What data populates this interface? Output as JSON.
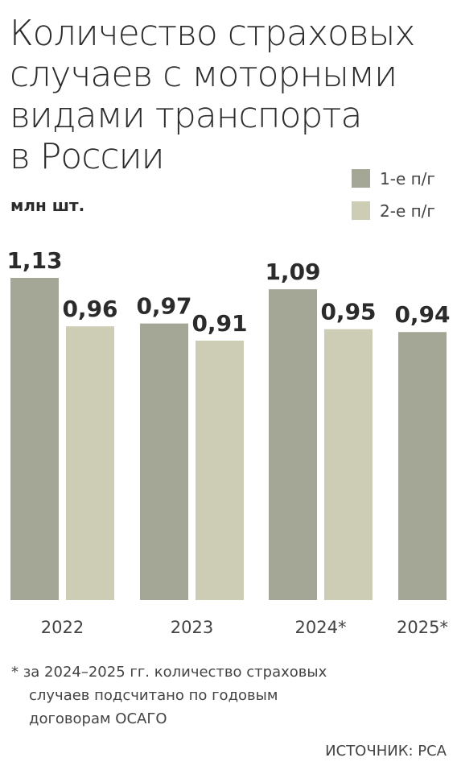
{
  "chart_data": {
    "type": "bar",
    "title": [
      "Количество страховых",
      "случаев с моторными",
      "видами транспорта",
      "в России"
    ],
    "unit": "млн шт.",
    "categories": [
      "2022",
      "2023",
      "2024*",
      "2025*"
    ],
    "series": [
      {
        "name": "1-е п/г",
        "color": "#a4a696",
        "values": [
          1.13,
          0.97,
          1.09,
          0.94
        ],
        "value_labels": [
          "1,13",
          "0,97",
          "1,09",
          "0,94"
        ]
      },
      {
        "name": "2-е п/г",
        "color": "#cdcdb6",
        "values": [
          0.96,
          0.91,
          0.95,
          null
        ],
        "value_labels": [
          "0,96",
          "0,91",
          "0,95",
          null
        ]
      }
    ],
    "footnote": [
      "* за 2024–2025 гг. количество страховых",
      "случаев подсчитано по годовым",
      "договорам ОСАГО"
    ],
    "source": "ИСТОЧНИК: РСА"
  }
}
